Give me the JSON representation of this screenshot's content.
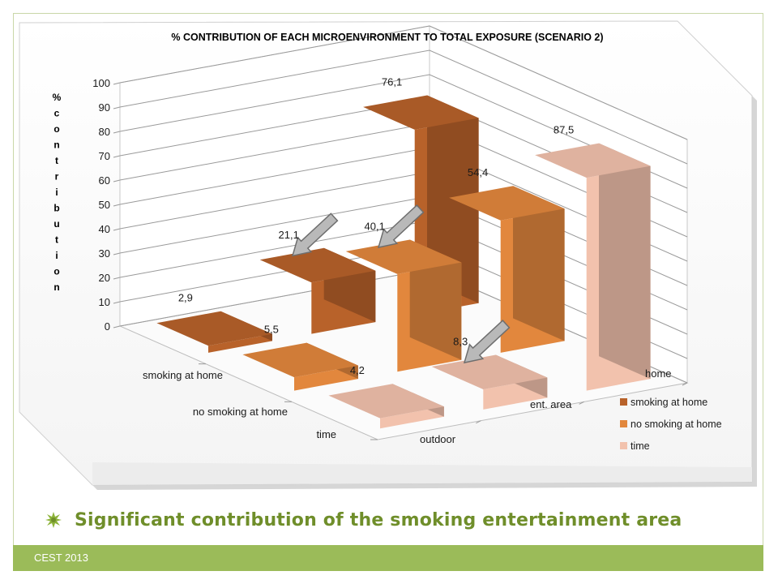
{
  "chart_data": {
    "type": "bar",
    "title": "% CONTRIBUTION  OF EACH MICROENVIRONMENT  TO TOTAL EXPOSURE (SCENARIO 2)",
    "ylabel": "% contribution",
    "ylim": [
      0,
      100
    ],
    "yticks": [
      "0",
      "10",
      "20",
      "30",
      "40",
      "50",
      "60",
      "70",
      "80",
      "90",
      "100"
    ],
    "categories": [
      "outdoor",
      "ent. area",
      "home"
    ],
    "series": [
      {
        "name": "smoking at home",
        "values": [
          2.9,
          21.1,
          76.1
        ],
        "labels": [
          "2,9",
          "21,1",
          "76,1"
        ],
        "color": "#b8622a"
      },
      {
        "name": "no smoking at home",
        "values": [
          5.5,
          40.1,
          54.4
        ],
        "labels": [
          "5,5",
          "40,1",
          "54,4"
        ],
        "color": "#e2873d"
      },
      {
        "name": "time",
        "values": [
          4.2,
          8.3,
          87.5
        ],
        "labels": [
          "4,2",
          "8,3",
          "87,5"
        ],
        "color": "#f2c2ad"
      }
    ],
    "legend": {
      "position": "bottom-right"
    },
    "grid": true
  },
  "bullet": {
    "text": "Significant contribution of the smoking entertainment area"
  },
  "footer": {
    "text": "CEST 2013"
  },
  "colors": {
    "accent": "#9bbb59",
    "bullet_text": "#6f8e2a"
  }
}
